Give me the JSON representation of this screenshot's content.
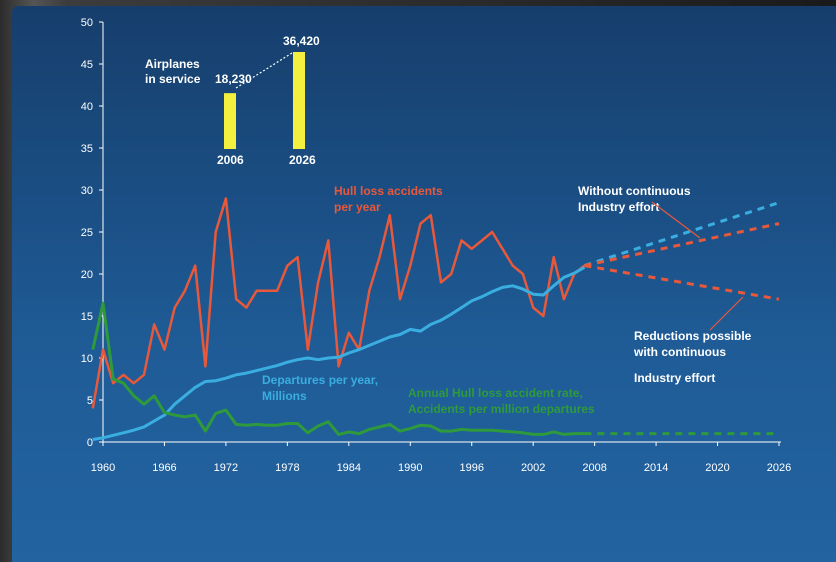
{
  "chart_data": {
    "type": "line",
    "title": "",
    "xlabel": "",
    "ylabel": "",
    "xlim": [
      1960,
      2026
    ],
    "ylim": [
      0,
      50
    ],
    "x_ticks": [
      "1960",
      "1966",
      "1972",
      "1978",
      "1984",
      "1990",
      "1996",
      "2002",
      "2008",
      "2014",
      "2020",
      "2026"
    ],
    "y_ticks": [
      "0",
      "5",
      "10",
      "15",
      "20",
      "25",
      "30",
      "35",
      "40",
      "45",
      "50"
    ],
    "grid": false,
    "colors": {
      "hull": "#e8583a",
      "departures": "#3aaee0",
      "rate": "#2e9a3c",
      "bars": "#f3f040",
      "text": "#ffffff"
    },
    "series": [
      {
        "name": "Hull loss accidents per year",
        "x": [
          1959,
          1960,
          1961,
          1962,
          1963,
          1964,
          1965,
          1966,
          1967,
          1968,
          1969,
          1970,
          1971,
          1972,
          1973,
          1974,
          1975,
          1976,
          1977,
          1978,
          1979,
          1980,
          1981,
          1982,
          1983,
          1984,
          1985,
          1986,
          1987,
          1988,
          1989,
          1990,
          1991,
          1992,
          1993,
          1994,
          1995,
          1996,
          1997,
          1998,
          1999,
          2000,
          2001,
          2002,
          2003,
          2004,
          2005,
          2006,
          2007
        ],
        "values": [
          4,
          11,
          7,
          8,
          7,
          8,
          14,
          11,
          16,
          18,
          21,
          9,
          25,
          29,
          17,
          16,
          18,
          18,
          18,
          21,
          22,
          11,
          19,
          24,
          9,
          13,
          11,
          18,
          22,
          27,
          17,
          21,
          26,
          27,
          19,
          20,
          24,
          23,
          24,
          25,
          23,
          21,
          20,
          16,
          15,
          22,
          17,
          20,
          21
        ]
      },
      {
        "name": "Departures per year, Millions",
        "x": [
          1959,
          1960,
          1961,
          1962,
          1963,
          1964,
          1965,
          1966,
          1967,
          1968,
          1969,
          1970,
          1971,
          1972,
          1973,
          1974,
          1975,
          1976,
          1977,
          1978,
          1979,
          1980,
          1981,
          1982,
          1983,
          1984,
          1985,
          1986,
          1987,
          1988,
          1989,
          1990,
          1991,
          1992,
          1993,
          1994,
          1995,
          1996,
          1997,
          1998,
          1999,
          2000,
          2001,
          2002,
          2003,
          2004,
          2005,
          2006,
          2007
        ],
        "values": [
          0.3,
          0.5,
          0.8,
          1.1,
          1.4,
          1.8,
          2.5,
          3.2,
          4.5,
          5.5,
          6.5,
          7.2,
          7.3,
          7.6,
          8.0,
          8.2,
          8.5,
          8.8,
          9.1,
          9.5,
          9.8,
          10.0,
          9.8,
          10.0,
          10.1,
          10.6,
          11.0,
          11.5,
          12.0,
          12.5,
          12.8,
          13.4,
          13.2,
          14.0,
          14.5,
          15.2,
          16.0,
          16.8,
          17.3,
          17.9,
          18.4,
          18.6,
          18.2,
          17.6,
          17.5,
          18.6,
          19.6,
          20.1,
          20.8
        ]
      },
      {
        "name": "Annual Hull loss accident rate, Accidents per million departures",
        "x": [
          1959,
          1960,
          1961,
          1962,
          1963,
          1964,
          1965,
          1966,
          1967,
          1968,
          1969,
          1970,
          1971,
          1972,
          1973,
          1974,
          1975,
          1976,
          1977,
          1978,
          1979,
          1980,
          1981,
          1982,
          1983,
          1984,
          1985,
          1986,
          1987,
          1988,
          1989,
          1990,
          1991,
          1992,
          1993,
          1994,
          1995,
          1996,
          1997,
          1998,
          1999,
          2000,
          2001,
          2002,
          2003,
          2004,
          2005,
          2006,
          2007
        ],
        "values": [
          11,
          16.5,
          7.5,
          7,
          5.5,
          4.5,
          5.5,
          3.5,
          3.2,
          3.0,
          3.2,
          1.3,
          3.4,
          3.8,
          2.1,
          2.0,
          2.1,
          2.0,
          2.0,
          2.2,
          2.2,
          1.1,
          1.9,
          2.4,
          0.9,
          1.2,
          1.0,
          1.5,
          1.8,
          2.1,
          1.3,
          1.6,
          2.0,
          1.9,
          1.3,
          1.3,
          1.5,
          1.4,
          1.4,
          1.4,
          1.3,
          1.2,
          1.1,
          0.9,
          0.9,
          1.2,
          0.9,
          1.0,
          1.0
        ]
      }
    ],
    "projections": [
      {
        "name": "projection-without-effort-blue",
        "color": "#3aaee0",
        "x": [
          2007,
          2026
        ],
        "values": [
          21,
          28.5
        ]
      },
      {
        "name": "projection-without-effort-red",
        "color": "#e8583a",
        "x": [
          2007,
          2026
        ],
        "values": [
          21,
          26
        ]
      },
      {
        "name": "projection-with-effort-red",
        "color": "#e8583a",
        "x": [
          2007,
          2026
        ],
        "values": [
          21,
          17
        ]
      },
      {
        "name": "projection-rate-green",
        "color": "#2e9a3c",
        "x": [
          2007,
          2026
        ],
        "values": [
          1.0,
          1.0
        ]
      }
    ],
    "inset": {
      "title_line1": "Airplanes",
      "title_line2": "in service",
      "bars": [
        {
          "label": "2006",
          "value": 18230,
          "value_label": "18,230"
        },
        {
          "label": "2026",
          "value": 36420,
          "value_label": "36,420"
        }
      ]
    },
    "annotations": {
      "hull_line1": "Hull loss accidents",
      "hull_line2": "per year",
      "departures_line1": "Departures per year,",
      "departures_line2": "Millions",
      "rate_line1": "Annual Hull loss accident rate,",
      "rate_line2": "Accidents per million departures",
      "without_line1": "Without continuous",
      "without_line2": "Industry effort",
      "with_line1": "Reductions possible",
      "with_line2": "with continuous",
      "with_line3": "Industry effort"
    }
  }
}
